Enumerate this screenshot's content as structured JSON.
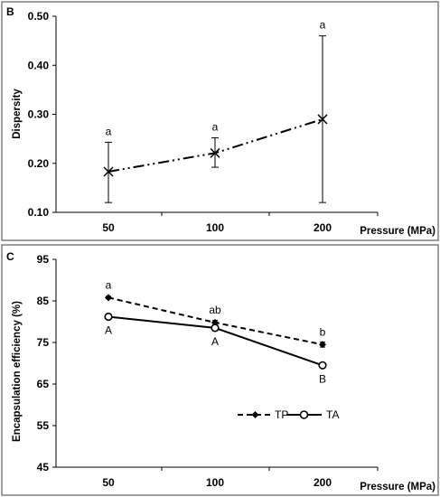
{
  "chart_data": [
    {
      "panel": "B",
      "type": "line",
      "categories": [
        "50",
        "100",
        "200"
      ],
      "xlabel": "Pressure (MPa)",
      "ylabel": "Dispersity",
      "ylim": [
        0.1,
        0.5
      ],
      "yticks": [
        "0.10",
        "0.20",
        "0.30",
        "0.40",
        "0.50"
      ],
      "series": [
        {
          "marker": "x",
          "line_style": "dash-dot-dot",
          "values": [
            0.183,
            0.221,
            0.29
          ],
          "error_low": [
            0.12,
            0.192,
            0.12
          ],
          "error_high": [
            0.243,
            0.252,
            0.46
          ],
          "labels": [
            "a",
            "a",
            "a"
          ]
        }
      ],
      "color": "#000000"
    },
    {
      "panel": "C",
      "type": "line",
      "categories": [
        "50",
        "100",
        "200"
      ],
      "xlabel": "Pressure (MPa)",
      "ylabel": "Encapsulation efficiency (%)",
      "ylim": [
        45,
        95
      ],
      "yticks": [
        "45",
        "55",
        "65",
        "75",
        "85",
        "95"
      ],
      "legend": "bottom-right",
      "series": [
        {
          "name": "TP",
          "marker": "diamond",
          "line_style": "dashed",
          "values": [
            85.8,
            79.8,
            74.5
          ],
          "error": [
            0.3,
            0.5,
            0.6
          ],
          "labels": [
            "a",
            "ab",
            "b"
          ]
        },
        {
          "name": "TA",
          "marker": "circle",
          "line_style": "solid",
          "values": [
            81.2,
            78.5,
            69.5
          ],
          "error": [
            0.5,
            0.7,
            0.4
          ],
          "labels": [
            "A",
            "A",
            "B"
          ]
        }
      ],
      "color": "#000000"
    }
  ]
}
